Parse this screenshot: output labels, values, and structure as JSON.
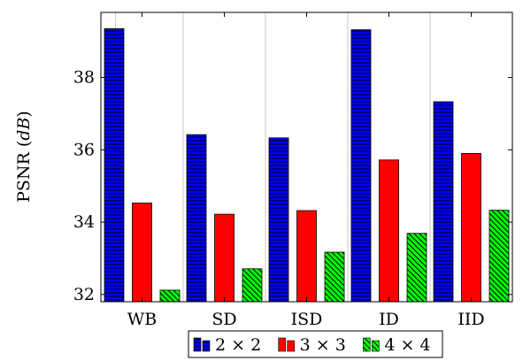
{
  "chart_data": {
    "type": "bar",
    "categories": [
      "WB",
      "SD",
      "ISD",
      "ID",
      "IID"
    ],
    "series": [
      {
        "name": "2 × 2",
        "values": [
          39.35,
          36.42,
          36.33,
          39.32,
          37.33
        ],
        "color": "#0000ff",
        "pattern": "horizontal-lines"
      },
      {
        "name": "3 × 3",
        "values": [
          34.53,
          34.22,
          34.32,
          35.72,
          35.9
        ],
        "color": "#ff0000",
        "pattern": "solid"
      },
      {
        "name": "4 × 4",
        "values": [
          32.12,
          32.71,
          33.17,
          33.69,
          34.33
        ],
        "color": "#00ff00",
        "pattern": "diagonal-lines"
      }
    ],
    "ylabel": "PSNR",
    "ylabel_unit": "dB",
    "ylim": [
      31.8,
      39.8
    ],
    "yticks": [
      "32",
      "34",
      "36",
      "38"
    ],
    "grid": "vertical",
    "legend_position": "bottom-center"
  }
}
